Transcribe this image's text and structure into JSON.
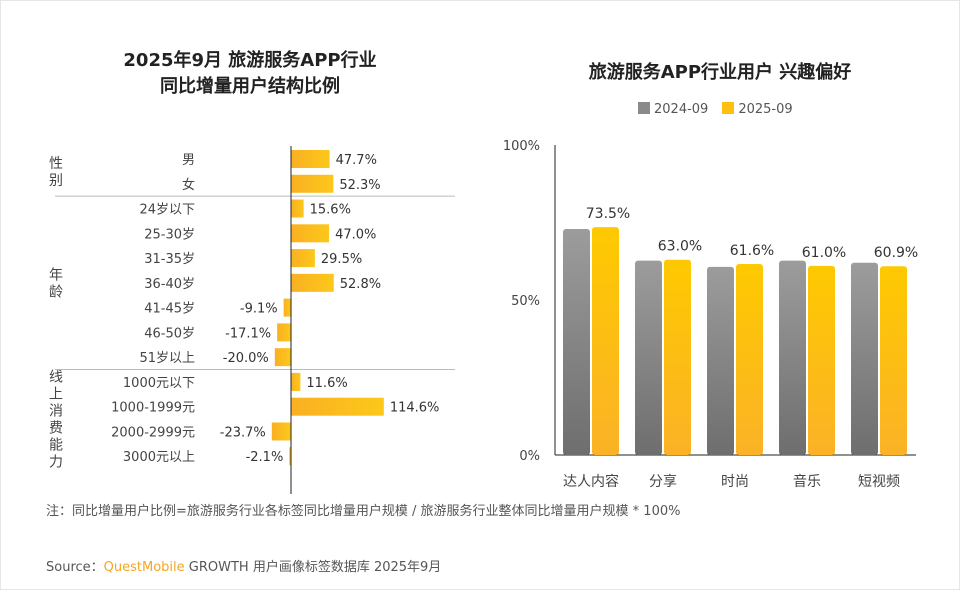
{
  "chart_data": [
    {
      "type": "bar",
      "orientation": "horizontal",
      "title_lines": [
        "2025年9月 旅游服务APP行业",
        "同比增量用户结构比例"
      ],
      "groups": [
        {
          "name": "性别",
          "categories": [
            "男",
            "女"
          ],
          "values": [
            47.7,
            52.3
          ],
          "labels": [
            "47.7%",
            "52.3%"
          ]
        },
        {
          "name": "年龄",
          "categories": [
            "24岁以下",
            "25-30岁",
            "31-35岁",
            "36-40岁",
            "41-45岁",
            "46-50岁",
            "51岁以上"
          ],
          "values": [
            15.6,
            47.0,
            29.5,
            52.8,
            -9.1,
            -17.1,
            -20.0
          ],
          "labels": [
            "15.6%",
            "47.0%",
            "29.5%",
            "52.8%",
            "-9.1%",
            "-17.1%",
            "-20.0%"
          ]
        },
        {
          "name": "线上消费能力",
          "categories": [
            "1000元以下",
            "1000-1999元",
            "2000-2999元",
            "3000元以上"
          ],
          "values": [
            11.6,
            114.6,
            -23.7,
            -2.1
          ],
          "labels": [
            "11.6%",
            "114.6%",
            "-23.7%",
            "-2.1%"
          ]
        }
      ],
      "bar_color": "#fbb924",
      "grid": false
    },
    {
      "type": "bar",
      "title": "旅游服务APP行业用户 兴趣偏好",
      "categories": [
        "达人内容",
        "分享",
        "时尚",
        "音乐",
        "短视频"
      ],
      "series": [
        {
          "name": "2024-09",
          "values": [
            72.9,
            62.7,
            60.7,
            62.7,
            62.0
          ],
          "color": "#8a8a8a"
        },
        {
          "name": "2025-09",
          "values": [
            73.5,
            63.0,
            61.6,
            61.0,
            60.9
          ],
          "labels": [
            "73.5%",
            "63.0%",
            "61.6%",
            "61.0%",
            "60.9%"
          ],
          "color": "#fbc010"
        }
      ],
      "yticks": [
        "100%",
        "50%",
        "0%"
      ],
      "ylim": [
        0,
        100
      ],
      "legend": "top",
      "grid": false
    }
  ],
  "note": "注：同比增量用户比例=旅游服务行业各标签同比增量用户规模 / 旅游服务行业整体同比增量用户规模 * 100%",
  "source": {
    "prefix": "Source：",
    "brand": "QuestMobile",
    "rest": " GROWTH 用户画像标签数据库 2025年9月"
  },
  "brand_color": "#f5a623"
}
